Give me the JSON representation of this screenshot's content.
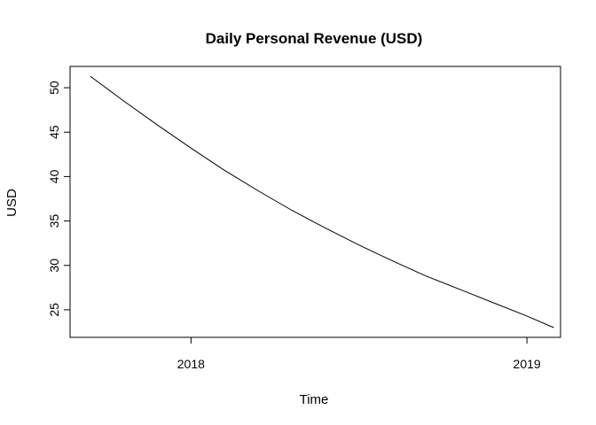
{
  "chart_data": {
    "type": "line",
    "title": "Daily Personal Revenue (USD)",
    "xlabel": "Time",
    "ylabel": "USD",
    "x_ticks": [
      {
        "value": 2018.0,
        "label": "2018"
      },
      {
        "value": 2019.0,
        "label": "2019"
      }
    ],
    "y_ticks": [
      {
        "value": 25,
        "label": "25"
      },
      {
        "value": 30,
        "label": "30"
      },
      {
        "value": 35,
        "label": "35"
      },
      {
        "value": 40,
        "label": "40"
      },
      {
        "value": 45,
        "label": "45"
      },
      {
        "value": 50,
        "label": "50"
      }
    ],
    "xlim": [
      2017.64,
      2019.1
    ],
    "ylim": [
      21.9,
      52.4
    ],
    "grid": false,
    "legend": "none",
    "line_color": "#000000",
    "series": [
      {
        "x": [
          2017.7,
          2017.8,
          2017.9,
          2018.0,
          2018.1,
          2018.2,
          2018.3,
          2018.4,
          2018.5,
          2018.6,
          2018.7,
          2018.8,
          2018.9,
          2019.0,
          2019.08
        ],
        "values": [
          51.3,
          48.5,
          45.8,
          43.2,
          40.7,
          38.4,
          36.2,
          34.2,
          32.3,
          30.5,
          28.8,
          27.3,
          25.8,
          24.3,
          23.0
        ]
      }
    ]
  }
}
